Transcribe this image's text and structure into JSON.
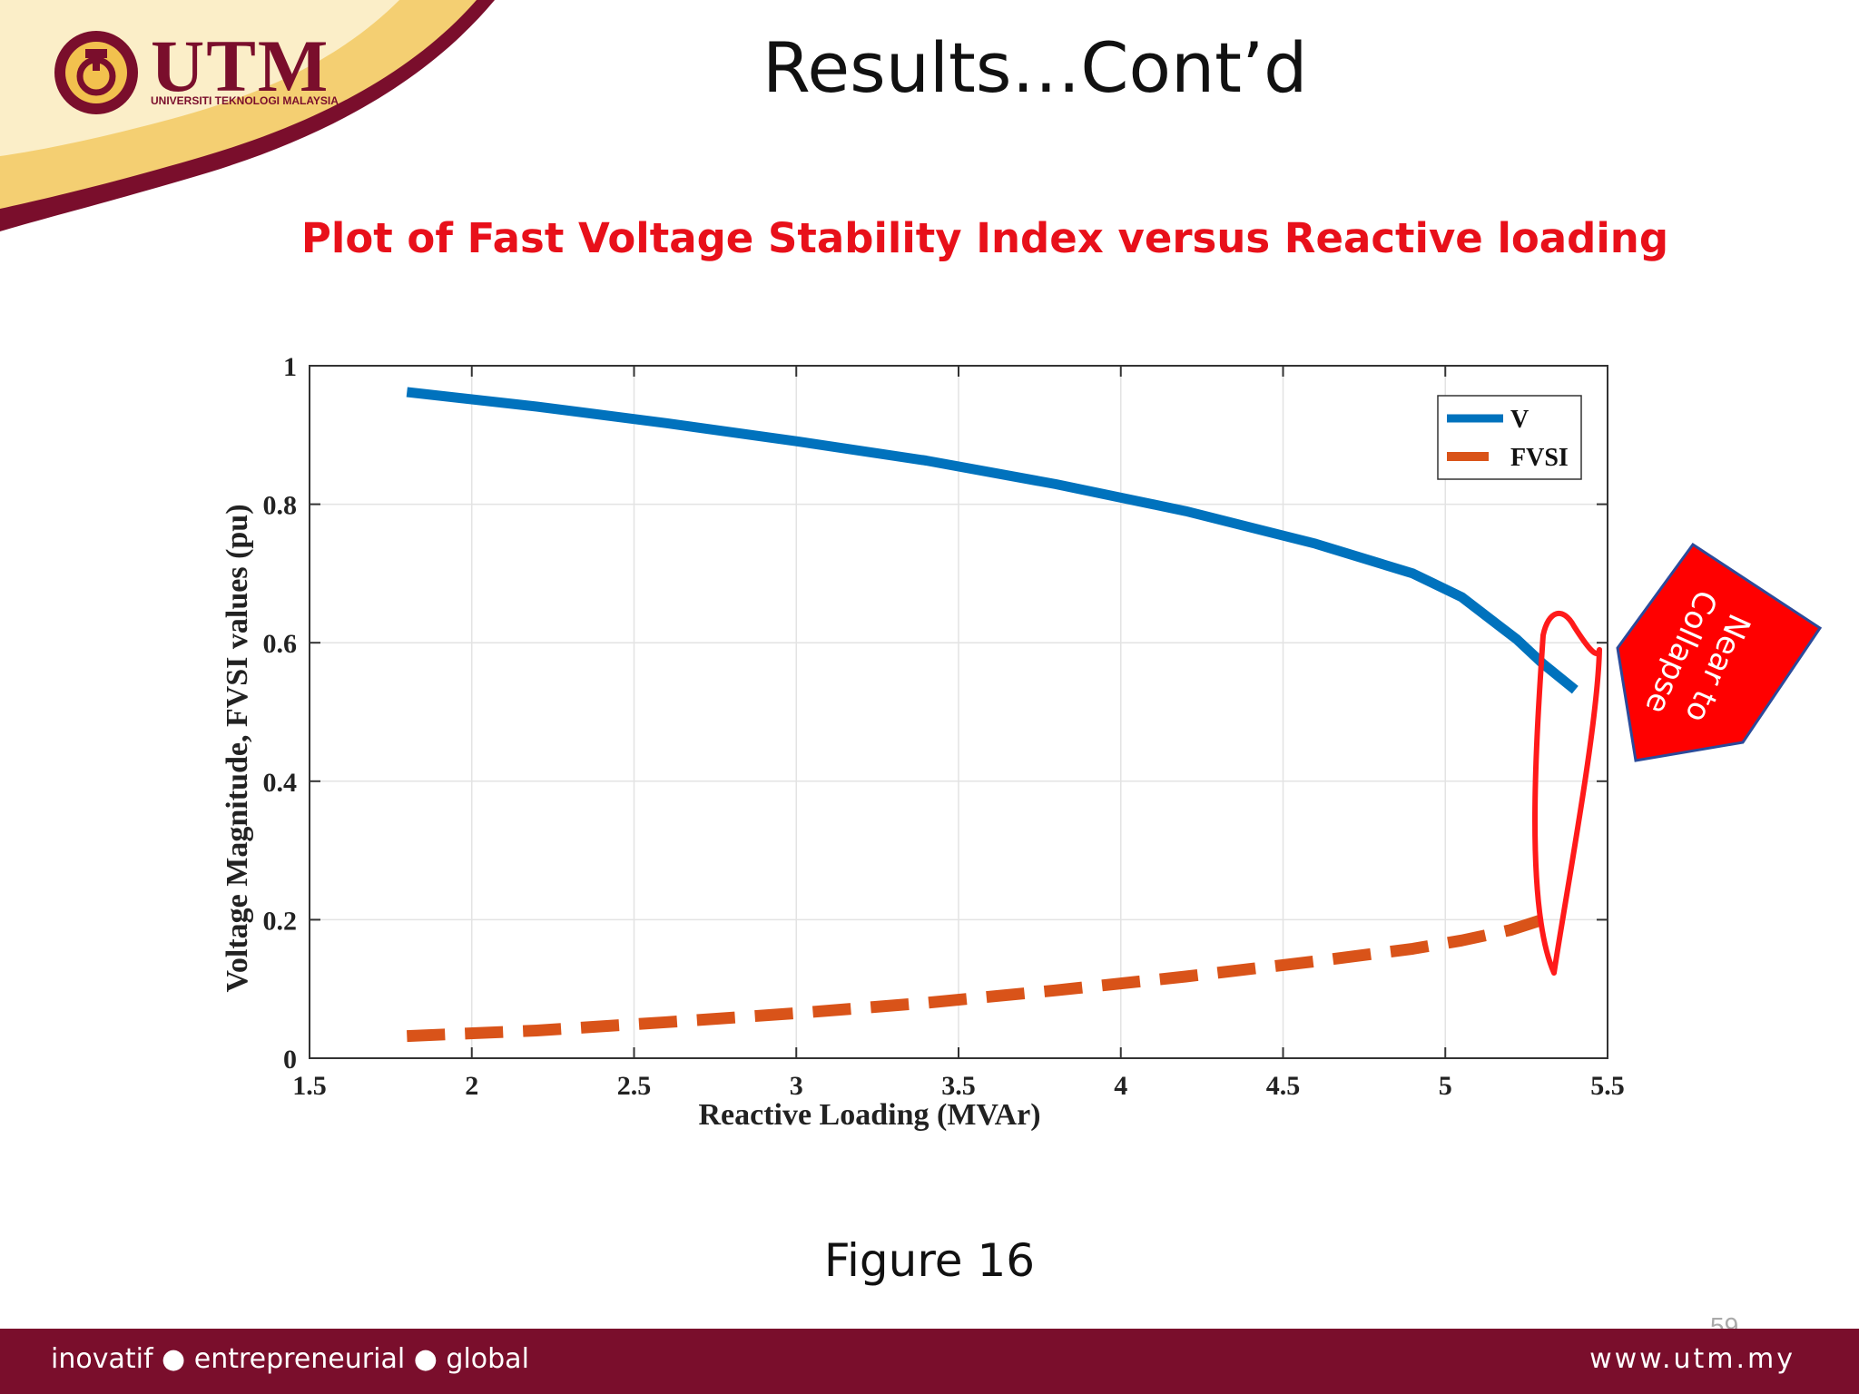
{
  "slide": {
    "title": "Results…Cont’d",
    "figure_caption": "Figure 16",
    "page_number": "59",
    "logo": {
      "name": "UTM",
      "subtitle": "UNIVERSITI TEKNOLOGI MALAYSIA"
    },
    "footer_left": "inovatif ● entrepreneurial ● global",
    "footer_right": "www.utm.my",
    "callout": {
      "line1": "Near to",
      "line2": "Collapse"
    },
    "colors": {
      "maroon": "#7a0e2c",
      "gold": "#f2c14e",
      "title_red": "#e8101a",
      "callout_red": "#ff0000",
      "callout_border": "#2b4a9a"
    }
  },
  "chart_data": {
    "type": "line",
    "title": "Plot of Fast Voltage Stability Index versus Reactive loading",
    "xlabel": "Reactive Loading (MVAr)",
    "ylabel": "Voltage Magnitude, FVSI values (pu)",
    "xlim": [
      1.5,
      5.5
    ],
    "ylim": [
      0,
      1
    ],
    "xticks": [
      "1.5",
      "2",
      "2.5",
      "3",
      "3.5",
      "4",
      "4.5",
      "5",
      "5.5"
    ],
    "yticks": [
      "0",
      "0.2",
      "0.4",
      "0.6",
      "0.8",
      "1"
    ],
    "grid": true,
    "legend_position": "top-right",
    "series": [
      {
        "name": "V",
        "style": "solid",
        "color": "#0072bd",
        "x": [
          1.8,
          2.2,
          2.6,
          3.0,
          3.4,
          3.8,
          4.2,
          4.6,
          4.9,
          5.05,
          5.22,
          5.3,
          5.4
        ],
        "y": [
          0.962,
          0.941,
          0.917,
          0.891,
          0.863,
          0.829,
          0.79,
          0.743,
          0.7,
          0.666,
          0.605,
          0.57,
          0.532
        ]
      },
      {
        "name": "FVSI",
        "style": "dashed",
        "color": "#d95319",
        "x": [
          1.8,
          2.2,
          2.6,
          3.0,
          3.4,
          3.8,
          4.2,
          4.6,
          4.9,
          5.05,
          5.2,
          5.32
        ],
        "y": [
          0.032,
          0.04,
          0.052,
          0.065,
          0.08,
          0.098,
          0.118,
          0.14,
          0.158,
          0.17,
          0.185,
          0.203
        ]
      }
    ]
  }
}
